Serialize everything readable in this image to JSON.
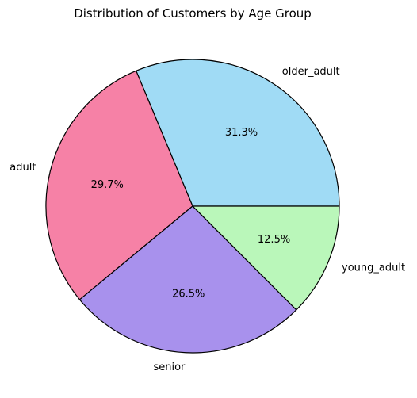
{
  "chart_data": {
    "type": "pie",
    "title": "Distribution of Customers by Age Group",
    "start_angle_deg": 0,
    "direction": "counterclockwise",
    "slices": [
      {
        "label": "older_adult",
        "value": 31.3,
        "pct_label": "31.3%",
        "color": "#a0dbf5"
      },
      {
        "label": "adult",
        "value": 29.7,
        "pct_label": "29.7%",
        "color": "#f681a6"
      },
      {
        "label": "senior",
        "value": 26.5,
        "pct_label": "26.5%",
        "color": "#a891ed"
      },
      {
        "label": "young_adult",
        "value": 12.5,
        "pct_label": "12.5%",
        "color": "#baf7ba"
      }
    ],
    "edge_color": "#000000"
  }
}
